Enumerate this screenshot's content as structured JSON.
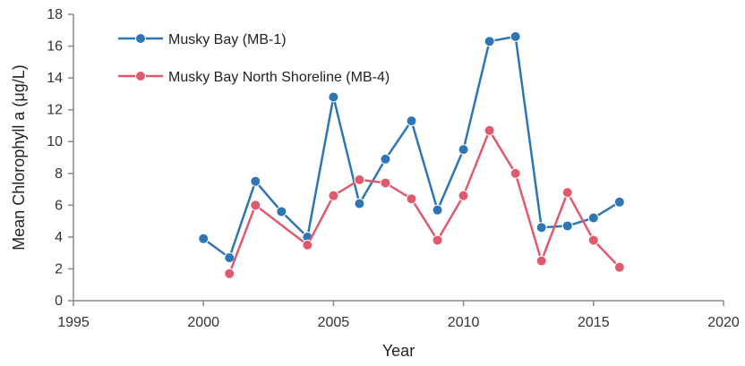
{
  "chart_data": {
    "type": "line",
    "title": "",
    "xlabel": "Year",
    "ylabel": "Mean Chlorophyll a (μg/L)",
    "xlim": [
      1995,
      2020
    ],
    "ylim": [
      0,
      18
    ],
    "xticks": [
      1995,
      2000,
      2005,
      2010,
      2015,
      2020
    ],
    "yticks": [
      0,
      2,
      4,
      6,
      8,
      10,
      12,
      14,
      16,
      18
    ],
    "grid": false,
    "legend_position": "top-left",
    "series": [
      {
        "name": "Musky Bay (MB-1)",
        "color": "#2e75b6",
        "marker": "circle",
        "points": [
          {
            "x": 2000,
            "y": 3.9
          },
          {
            "x": 2001,
            "y": 2.7
          },
          {
            "x": 2002,
            "y": 7.5
          },
          {
            "x": 2003,
            "y": 5.6
          },
          {
            "x": 2004,
            "y": 4.0
          },
          {
            "x": 2005,
            "y": 12.8
          },
          {
            "x": 2006,
            "y": 6.1
          },
          {
            "x": 2007,
            "y": 8.9
          },
          {
            "x": 2008,
            "y": 11.3
          },
          {
            "x": 2009,
            "y": 5.7
          },
          {
            "x": 2010,
            "y": 9.5
          },
          {
            "x": 2011,
            "y": 16.3
          },
          {
            "x": 2012,
            "y": 16.6
          },
          {
            "x": 2013,
            "y": 4.6
          },
          {
            "x": 2014,
            "y": 4.7
          },
          {
            "x": 2015,
            "y": 5.2
          },
          {
            "x": 2016,
            "y": 6.2
          }
        ]
      },
      {
        "name": "Musky Bay North Shoreline (MB-4)",
        "color": "#e05a6e",
        "marker": "circle",
        "points": [
          {
            "x": 2001,
            "y": 1.7
          },
          {
            "x": 2002,
            "y": 6.0
          },
          {
            "x": 2004,
            "y": 3.5
          },
          {
            "x": 2005,
            "y": 6.6
          },
          {
            "x": 2006,
            "y": 7.6
          },
          {
            "x": 2007,
            "y": 7.4
          },
          {
            "x": 2008,
            "y": 6.4
          },
          {
            "x": 2009,
            "y": 3.8
          },
          {
            "x": 2010,
            "y": 6.6
          },
          {
            "x": 2011,
            "y": 10.7
          },
          {
            "x": 2012,
            "y": 8.0
          },
          {
            "x": 2013,
            "y": 2.5
          },
          {
            "x": 2014,
            "y": 6.8
          },
          {
            "x": 2015,
            "y": 3.8
          },
          {
            "x": 2016,
            "y": 2.1
          }
        ]
      }
    ]
  }
}
